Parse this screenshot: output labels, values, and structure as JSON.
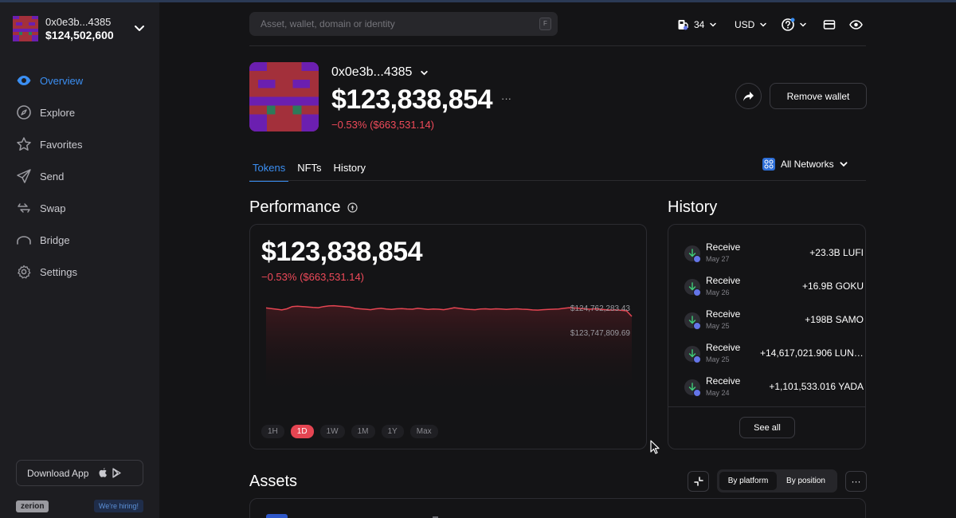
{
  "sidebar": {
    "wallet": {
      "address": "0x0e3b...4385",
      "balance": "$124,502,600"
    },
    "nav": [
      {
        "label": "Overview",
        "icon": "eye-icon",
        "active": true
      },
      {
        "label": "Explore",
        "icon": "compass-icon"
      },
      {
        "label": "Favorites",
        "icon": "star-icon"
      },
      {
        "label": "Send",
        "icon": "send-icon"
      },
      {
        "label": "Swap",
        "icon": "swap-icon"
      },
      {
        "label": "Bridge",
        "icon": "bridge-icon"
      },
      {
        "label": "Settings",
        "icon": "gear-icon"
      }
    ],
    "download_label": "Download App",
    "brand": "zerion",
    "hiring": "We're hiring!"
  },
  "topbar": {
    "search_placeholder": "Asset, wallet, domain or identity",
    "search_shortcut": "F",
    "gas": "34",
    "currency": "USD"
  },
  "header": {
    "address": "0x0e3b...4385",
    "balance": "$123,838,854",
    "more": "···",
    "change": "−0.53% ($663,531.14)",
    "remove_label": "Remove wallet"
  },
  "tabs": [
    {
      "label": "Tokens",
      "active": true
    },
    {
      "label": "NFTs"
    },
    {
      "label": "History"
    }
  ],
  "networks_label": "All Networks",
  "performance": {
    "title": "Performance",
    "value": "$123,838,854",
    "change": "−0.53% ($663,531.14)",
    "high_label": "$124,762,283.43",
    "low_label": "$123,747,809.69",
    "ranges": [
      "1H",
      "1D",
      "1W",
      "1M",
      "1Y",
      "Max"
    ],
    "active_range": "1D",
    "line_color": "#e54552"
  },
  "chart_data": {
    "type": "area",
    "title": "",
    "xlabel": "",
    "ylabel": "",
    "range": "1D",
    "high": 124762283.43,
    "low": 123747809.69,
    "values": [
      124640000,
      124610000,
      124580000,
      124550000,
      124600000,
      124700000,
      124720000,
      124700000,
      124680000,
      124660000,
      124650000,
      124700000,
      124730000,
      124740000,
      124720000,
      124700000,
      124680000,
      124620000,
      124600000,
      124580000,
      124560000,
      124600000,
      124620000,
      124590000,
      124570000,
      124600000,
      124610000,
      124590000,
      124580000,
      124620000,
      124600000,
      124570000,
      124590000,
      124580000,
      124560000,
      124600000,
      124650000,
      124620000,
      124590000,
      124570000,
      124560000,
      124590000,
      124600000,
      124580000,
      124600000,
      124590000,
      124570000,
      124590000,
      124600000,
      124580000,
      124570000,
      124550000,
      124540000,
      124560000,
      124570000,
      124580000,
      124590000,
      124620000,
      124650000,
      124640000,
      124620000,
      124600000,
      124580000,
      124600000,
      124580000,
      124560000,
      124540000,
      124550000,
      124530000,
      124510000,
      123747809.69
    ],
    "ylim": [
      123747809.69,
      124762283.43
    ]
  },
  "history": {
    "title": "History",
    "items": [
      {
        "type": "Receive",
        "date": "May 27",
        "amount": "+23.3B LUFI"
      },
      {
        "type": "Receive",
        "date": "May 26",
        "amount": "+16.9B GOKU"
      },
      {
        "type": "Receive",
        "date": "May 25",
        "amount": "+198B SAMO"
      },
      {
        "type": "Receive",
        "date": "May 25",
        "amount": "+14,617,021.906 LUNI..."
      },
      {
        "type": "Receive",
        "date": "May 24",
        "amount": "+1,101,533.016 YADA"
      }
    ],
    "see_all": "See all"
  },
  "assets": {
    "title": "Assets",
    "by_platform": "By platform",
    "by_position": "By position",
    "more": "···"
  }
}
